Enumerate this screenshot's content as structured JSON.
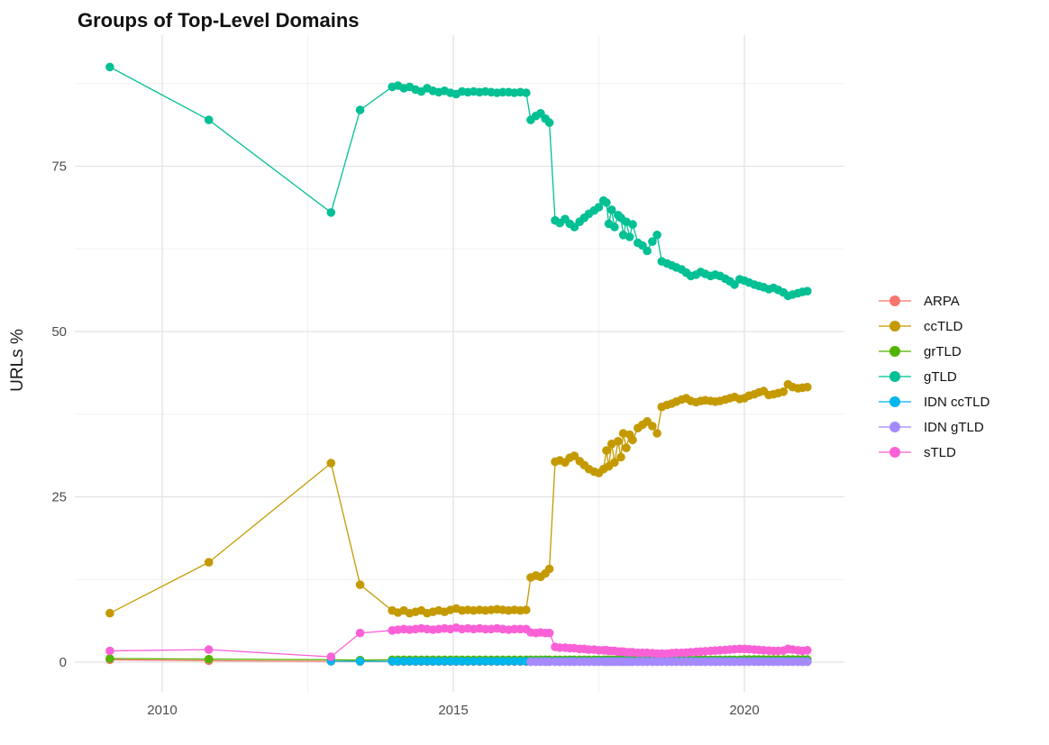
{
  "chart_data": {
    "type": "scatter",
    "title": "Groups of Top-Level Domains",
    "ylabel": "URLs %",
    "xlabel": "",
    "legend_position": "right",
    "grid": "major and minor, light gray on white",
    "x_ticks": [
      "2010",
      "2015",
      "2020"
    ],
    "x_tick_years": [
      2010,
      2015,
      2020
    ],
    "x_minor_years": [
      2012.5,
      2017.5
    ],
    "y_ticks": [
      "0",
      "25",
      "50",
      "75"
    ],
    "y_tick_values": [
      0,
      25,
      50,
      75
    ],
    "y_minor_values": [
      12.5,
      37.5,
      62.5,
      87.5
    ],
    "xlim": [
      2008.5,
      2021.7
    ],
    "ylim": [
      -4.6,
      95
    ],
    "x": [
      2009.1,
      2010.8,
      2012.9,
      2013.4,
      2013.95,
      2014.05,
      2014.15,
      2014.25,
      2014.35,
      2014.45,
      2014.55,
      2014.65,
      2014.75,
      2014.85,
      2014.95,
      2015.05,
      2015.15,
      2015.25,
      2015.35,
      2015.45,
      2015.55,
      2015.65,
      2015.75,
      2015.85,
      2015.95,
      2016.05,
      2016.15,
      2016.25,
      2016.33,
      2016.42,
      2016.5,
      2016.58,
      2016.65,
      2016.75,
      2016.83,
      2016.92,
      2017.0,
      2017.08,
      2017.17,
      2017.25,
      2017.33,
      2017.42,
      2017.5,
      2017.58,
      2017.63,
      2017.67,
      2017.72,
      2017.77,
      2017.83,
      2017.88,
      2017.92,
      2017.97,
      2018.03,
      2018.08,
      2018.17,
      2018.25,
      2018.33,
      2018.42,
      2018.5,
      2018.58,
      2018.67,
      2018.75,
      2018.83,
      2018.92,
      2019.0,
      2019.08,
      2019.17,
      2019.25,
      2019.33,
      2019.42,
      2019.5,
      2019.58,
      2019.67,
      2019.75,
      2019.83,
      2019.92,
      2020.0,
      2020.08,
      2020.17,
      2020.25,
      2020.33,
      2020.42,
      2020.5,
      2020.58,
      2020.67,
      2020.75,
      2020.83,
      2020.92,
      2021.0,
      2021.08
    ],
    "series": [
      {
        "name": "ARPA",
        "color": "#F8766D",
        "y": [
          0.35,
          0.2,
          0.12,
          0.1,
          0.1,
          0.1,
          0.1,
          0.1,
          0.1,
          0.1,
          0.1,
          0.1,
          0.1,
          0.1,
          0.1,
          0.1,
          0.1,
          0.1,
          0.1,
          0.1,
          0.1,
          0.1,
          0.1,
          0.1,
          0.1,
          0.1,
          0.1,
          0.1,
          0.1,
          0.1,
          0.1,
          0.1,
          0.1,
          0.1,
          0.1,
          0.1,
          0.1,
          0.1,
          0.1,
          0.1,
          0.1,
          0.1,
          0.1,
          0.1,
          0.1,
          0.1,
          0.1,
          0.1,
          0.1,
          0.1,
          0.1,
          0.1,
          0.1,
          0.1,
          0.1,
          0.1,
          0.1,
          0.1,
          0.1,
          0.1,
          0.1,
          0.1,
          0.1,
          0.1,
          0.1,
          0.1,
          0.1,
          0.1,
          0.1,
          0.1,
          0.1,
          0.1,
          0.1,
          0.1,
          0.1,
          0.1,
          0.1,
          0.1,
          0.1,
          0.1,
          0.1,
          0.1,
          0.1,
          0.1,
          0.1,
          0.1,
          0.1,
          0.1,
          0.1,
          0.1
        ]
      },
      {
        "name": "ccTLD",
        "color": "#C49A00",
        "y": [
          7.4,
          15.1,
          30.1,
          11.7,
          7.8,
          7.5,
          7.8,
          7.4,
          7.6,
          7.8,
          7.4,
          7.6,
          7.8,
          7.6,
          7.9,
          8.1,
          7.8,
          7.9,
          7.8,
          7.9,
          7.8,
          7.9,
          8.0,
          7.9,
          7.8,
          7.9,
          7.8,
          7.9,
          12.8,
          13.1,
          12.9,
          13.4,
          14.1,
          30.3,
          30.5,
          30.2,
          30.9,
          31.2,
          30.4,
          29.8,
          29.2,
          28.8,
          28.6,
          29.2,
          32.0,
          29.6,
          33.0,
          30.2,
          33.4,
          31.0,
          34.6,
          32.4,
          34.4,
          33.6,
          35.4,
          35.9,
          36.4,
          35.7,
          34.6,
          38.6,
          38.9,
          39.1,
          39.4,
          39.7,
          39.9,
          39.5,
          39.3,
          39.5,
          39.6,
          39.5,
          39.4,
          39.5,
          39.7,
          39.9,
          40.1,
          39.8,
          39.9,
          40.3,
          40.5,
          40.8,
          41.0,
          40.4,
          40.5,
          40.7,
          40.9,
          42.0,
          41.6,
          41.4,
          41.5,
          41.6
        ]
      },
      {
        "name": "grTLD",
        "color": "#53B400",
        "y": [
          0.55,
          0.45,
          0.35,
          0.3,
          0.35,
          0.35,
          0.35,
          0.35,
          0.35,
          0.35,
          0.35,
          0.35,
          0.35,
          0.35,
          0.35,
          0.35,
          0.35,
          0.35,
          0.35,
          0.35,
          0.35,
          0.35,
          0.35,
          0.35,
          0.35,
          0.35,
          0.35,
          0.35,
          0.35,
          0.35,
          0.35,
          0.35,
          0.35,
          0.35,
          0.35,
          0.35,
          0.35,
          0.35,
          0.35,
          0.35,
          0.35,
          0.35,
          0.35,
          0.35,
          0.35,
          0.35,
          0.35,
          0.35,
          0.35,
          0.35,
          0.35,
          0.35,
          0.35,
          0.35,
          0.35,
          0.35,
          0.35,
          0.35,
          0.35,
          0.35,
          0.35,
          0.35,
          0.35,
          0.35,
          0.35,
          0.35,
          0.35,
          0.35,
          0.35,
          0.35,
          0.35,
          0.35,
          0.35,
          0.35,
          0.35,
          0.35,
          0.4,
          0.4,
          0.4,
          0.4,
          0.4,
          0.4,
          0.4,
          0.4,
          0.4,
          0.4,
          0.4,
          0.4,
          0.4,
          0.4
        ]
      },
      {
        "name": "gTLD",
        "color": "#00C094",
        "y": [
          90.0,
          82.0,
          68.0,
          83.5,
          87.0,
          87.2,
          86.8,
          87.0,
          86.6,
          86.3,
          86.8,
          86.4,
          86.2,
          86.4,
          86.1,
          85.9,
          86.3,
          86.2,
          86.3,
          86.2,
          86.3,
          86.2,
          86.1,
          86.2,
          86.2,
          86.1,
          86.2,
          86.1,
          82.0,
          82.6,
          83.0,
          82.2,
          81.6,
          66.8,
          66.4,
          67.0,
          66.3,
          65.8,
          66.6,
          67.2,
          67.8,
          68.3,
          68.8,
          69.8,
          69.5,
          66.3,
          68.4,
          65.8,
          67.6,
          67.2,
          64.6,
          66.6,
          64.3,
          66.2,
          63.4,
          63.0,
          62.2,
          63.6,
          64.6,
          60.6,
          60.3,
          60.0,
          59.7,
          59.4,
          58.9,
          58.4,
          58.6,
          59.0,
          58.7,
          58.4,
          58.6,
          58.4,
          58.0,
          57.6,
          57.1,
          57.9,
          57.7,
          57.4,
          57.1,
          56.9,
          56.7,
          56.4,
          56.6,
          56.3,
          55.9,
          55.4,
          55.6,
          55.8,
          56.0,
          56.1
        ]
      },
      {
        "name": "IDN ccTLD",
        "color": "#00B6EB",
        "y": [
          null,
          null,
          0.15,
          0.12,
          0.12,
          0.12,
          0.12,
          0.12,
          0.12,
          0.12,
          0.12,
          0.12,
          0.12,
          0.12,
          0.12,
          0.12,
          0.12,
          0.12,
          0.12,
          0.12,
          0.12,
          0.12,
          0.12,
          0.12,
          0.12,
          0.12,
          0.12,
          0.12,
          0.12,
          0.12,
          0.12,
          0.12,
          0.12,
          0.12,
          0.12,
          0.12,
          0.12,
          0.12,
          0.12,
          0.12,
          0.12,
          0.12,
          0.12,
          0.12,
          0.12,
          0.12,
          0.12,
          0.12,
          0.12,
          0.12,
          0.12,
          0.12,
          0.12,
          0.12,
          0.12,
          0.12,
          0.12,
          0.12,
          0.12,
          0.12,
          0.12,
          0.12,
          0.12,
          0.12,
          0.12,
          0.12,
          0.12,
          0.12,
          0.12,
          0.12,
          0.12,
          0.12,
          0.12,
          0.12,
          0.12,
          0.12,
          0.12,
          0.12,
          0.12,
          0.12,
          0.12,
          0.12,
          0.12,
          0.12,
          0.12,
          0.12,
          0.12,
          0.12,
          0.12,
          0.12
        ]
      },
      {
        "name": "IDN gTLD",
        "color": "#A58AFF",
        "y": [
          null,
          null,
          null,
          null,
          null,
          null,
          null,
          null,
          null,
          null,
          null,
          null,
          null,
          null,
          null,
          null,
          null,
          null,
          null,
          null,
          null,
          null,
          null,
          null,
          null,
          null,
          null,
          null,
          0.05,
          0.05,
          0.05,
          0.05,
          0.05,
          0.05,
          0.05,
          0.05,
          0.05,
          0.05,
          0.05,
          0.05,
          0.05,
          0.05,
          0.05,
          0.05,
          0.05,
          0.05,
          0.05,
          0.05,
          0.05,
          0.05,
          0.05,
          0.05,
          0.05,
          0.05,
          0.05,
          0.05,
          0.05,
          0.05,
          0.05,
          0.05,
          0.05,
          0.05,
          0.05,
          0.05,
          0.05,
          0.05,
          0.05,
          0.05,
          0.05,
          0.05,
          0.05,
          0.05,
          0.05,
          0.05,
          0.05,
          0.05,
          0.05,
          0.05,
          0.05,
          0.05,
          0.05,
          0.05,
          0.05,
          0.05,
          0.05,
          0.05,
          0.05,
          0.05,
          0.05,
          0.05
        ]
      },
      {
        "name": "sTLD",
        "color": "#FB61D7",
        "y": [
          1.7,
          1.9,
          0.8,
          4.4,
          4.8,
          4.9,
          5.0,
          4.9,
          5.0,
          5.1,
          5.0,
          4.9,
          5.0,
          5.1,
          5.0,
          5.2,
          5.0,
          5.1,
          5.0,
          5.1,
          5.0,
          5.0,
          5.1,
          5.0,
          4.9,
          5.0,
          5.0,
          5.0,
          4.5,
          4.4,
          4.5,
          4.4,
          4.4,
          2.3,
          2.2,
          2.2,
          2.1,
          2.1,
          2.0,
          2.0,
          1.9,
          1.9,
          1.8,
          1.8,
          1.8,
          1.7,
          1.7,
          1.7,
          1.6,
          1.6,
          1.6,
          1.5,
          1.5,
          1.5,
          1.4,
          1.4,
          1.4,
          1.35,
          1.3,
          1.3,
          1.3,
          1.35,
          1.4,
          1.4,
          1.45,
          1.5,
          1.55,
          1.6,
          1.65,
          1.7,
          1.75,
          1.8,
          1.85,
          1.9,
          1.95,
          2.0,
          2.0,
          1.95,
          1.9,
          1.85,
          1.8,
          1.75,
          1.7,
          1.7,
          1.75,
          2.0,
          1.9,
          1.8,
          1.7,
          1.8
        ]
      }
    ]
  }
}
